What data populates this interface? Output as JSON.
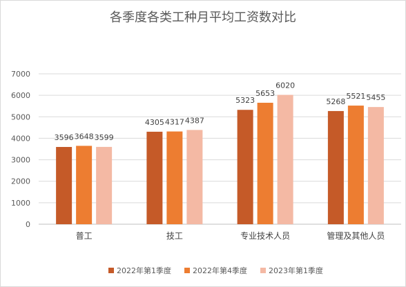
{
  "chart_data": {
    "type": "bar",
    "title": "各季度各类工种月平均工资数对比",
    "categories": [
      "普工",
      "技工",
      "专业技术人员",
      "管理及其他人员"
    ],
    "series": [
      {
        "name": "2022年第1季度",
        "color": "#c55a28",
        "values": [
          3596,
          4305,
          5323,
          5268
        ]
      },
      {
        "name": "2022年第4季度",
        "color": "#ed7d31",
        "values": [
          3648,
          4317,
          5653,
          5521
        ]
      },
      {
        "name": "2023年第1季度",
        "color": "#f4b9a4",
        "values": [
          3599,
          4387,
          6020,
          5455
        ]
      }
    ],
    "ylim": [
      0,
      7000
    ],
    "yticks": [
      "0",
      "1000",
      "2000",
      "3000",
      "4000",
      "5000",
      "6000",
      "7000"
    ],
    "grid": true,
    "legend_position": "bottom"
  }
}
